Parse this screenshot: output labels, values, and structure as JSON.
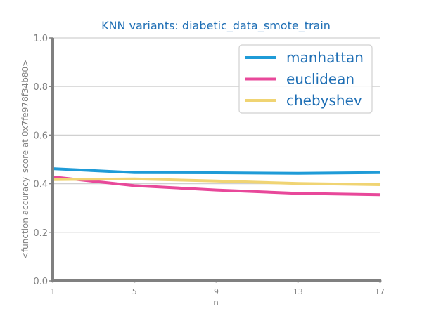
{
  "chart_data": {
    "type": "line",
    "title": "KNN variants: diabetic_data_smote_train",
    "xlabel": "n",
    "ylabel": "<function accuracy_score at 0x7fe978f34b80>",
    "x": [
      1,
      5,
      9,
      13,
      17
    ],
    "x_ticks": [
      "1",
      "5",
      "9",
      "13",
      "17"
    ],
    "xlim": [
      1,
      17
    ],
    "ylim": [
      0.0,
      1.0
    ],
    "y_ticks": [
      "0.0",
      "0.2",
      "0.4",
      "0.6",
      "0.8",
      "1.0"
    ],
    "grid": "horizontal",
    "legend_position": "top-right",
    "series": [
      {
        "name": "manhattan",
        "color": "#1f9bd7",
        "values": [
          0.462,
          0.446,
          0.445,
          0.443,
          0.446
        ]
      },
      {
        "name": "euclidean",
        "color": "#e8489a",
        "values": [
          0.428,
          0.392,
          0.374,
          0.36,
          0.355
        ]
      },
      {
        "name": "chebyshev",
        "color": "#f0d473",
        "values": [
          0.417,
          0.42,
          0.411,
          0.401,
          0.396
        ]
      }
    ],
    "colors": {
      "title": "#1f6fb5",
      "axis": "#808080",
      "grid": "#d0d0d0",
      "legend_text": "#1f6fb5"
    }
  }
}
